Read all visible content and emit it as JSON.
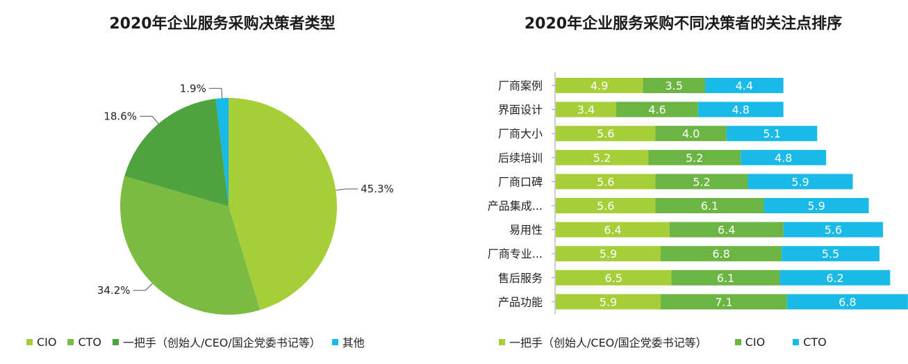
{
  "colors": {
    "cio": "#a6ce39",
    "cto": "#7cbb42",
    "boss": "#4ea340",
    "other": "#19b9e8",
    "bar_boss": "#a6ce39",
    "bar_cio": "#6cb544",
    "bar_cto": "#19b9e8"
  },
  "chart_data": [
    {
      "type": "pie",
      "title": "2020年企业服务采购决策者类型",
      "slices": [
        {
          "label": "CIO",
          "value": 45.3,
          "display": "45.3%"
        },
        {
          "label": "CTO",
          "value": 34.2,
          "display": "34.2%"
        },
        {
          "label": "一把手（创始人/CEO/国企党委书记等）",
          "value": 18.6,
          "display": "18.6%"
        },
        {
          "label": "其他",
          "value": 1.9,
          "display": "1.9%"
        }
      ],
      "legend": [
        "CIO",
        "CTO",
        "一把手（创始人/CEO/国企党委书记等）",
        "其他"
      ]
    },
    {
      "type": "bar",
      "stacked": true,
      "orientation": "horizontal",
      "title": "2020年企业服务采购不同决策者的关注点排序",
      "categories": [
        "厂商案例",
        "界面设计",
        "厂商大小",
        "后续培训",
        "厂商口碑",
        "产品集成...",
        "易用性",
        "厂商专业...",
        "售后服务",
        "产品功能"
      ],
      "series": [
        {
          "name": "一把手（创始人/CEO/国企党委书记等）",
          "values": [
            4.9,
            3.4,
            5.6,
            5.2,
            5.6,
            5.6,
            6.4,
            5.9,
            6.5,
            5.9
          ]
        },
        {
          "name": "CIO",
          "values": [
            3.5,
            4.6,
            4.0,
            5.2,
            5.2,
            6.1,
            6.4,
            6.8,
            6.1,
            7.1
          ]
        },
        {
          "name": "CTO",
          "values": [
            4.4,
            4.8,
            5.1,
            4.8,
            5.9,
            5.9,
            5.6,
            5.5,
            6.2,
            6.8
          ]
        }
      ],
      "legend": [
        "一把手（创始人/CEO/国企党委书记等）",
        "CIO",
        "CTO"
      ]
    }
  ]
}
